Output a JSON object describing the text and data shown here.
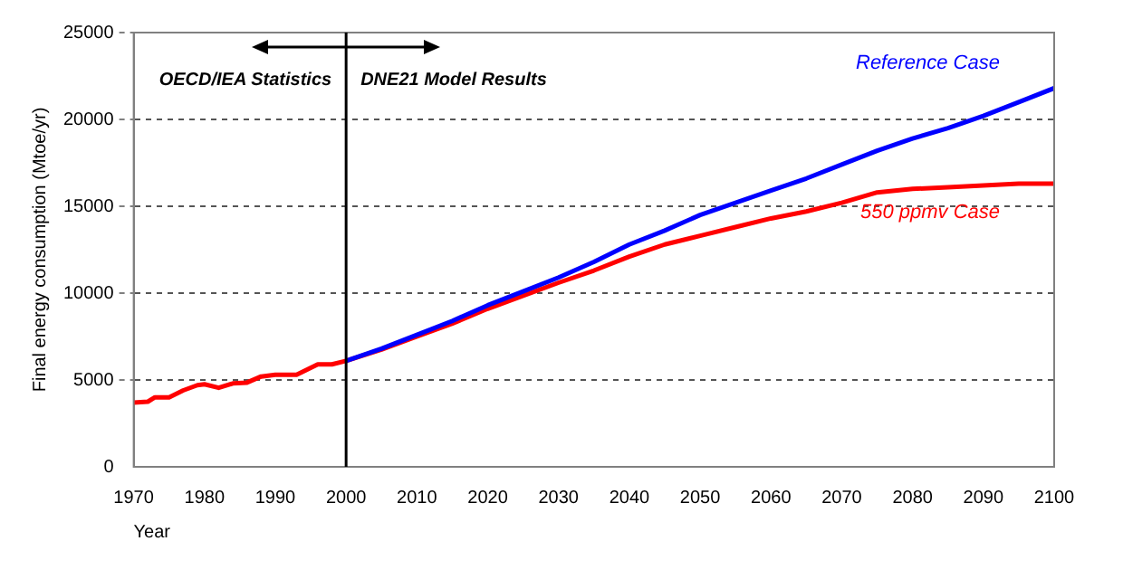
{
  "chart_data": {
    "type": "line",
    "xlabel": "Year",
    "ylabel": "Final energy consumption (Mtoe/yr)",
    "series": [
      {
        "name": "Reference Case",
        "color": "#0000ff",
        "x": [
          2000,
          2005,
          2010,
          2015,
          2020,
          2025,
          2030,
          2035,
          2040,
          2045,
          2050,
          2055,
          2060,
          2065,
          2070,
          2075,
          2080,
          2085,
          2090,
          2095,
          2100
        ],
        "values": [
          6100,
          6800,
          7600,
          8400,
          9300,
          10100,
          10900,
          11800,
          12800,
          13600,
          14500,
          15200,
          15900,
          16600,
          17400,
          18200,
          18900,
          19500,
          20200,
          21000,
          21800
        ]
      },
      {
        "name": "550 ppmv Case",
        "color": "#ff0000",
        "x": [
          1970,
          1972,
          1973,
          1975,
          1977,
          1979,
          1980,
          1982,
          1984,
          1986,
          1988,
          1990,
          1993,
          1996,
          1998,
          2000,
          2005,
          2010,
          2015,
          2020,
          2025,
          2030,
          2035,
          2040,
          2045,
          2050,
          2055,
          2060,
          2065,
          2070,
          2075,
          2080,
          2085,
          2090,
          2095,
          2100
        ],
        "values": [
          3700,
          3750,
          4000,
          4000,
          4400,
          4700,
          4750,
          4550,
          4800,
          4850,
          5200,
          5300,
          5300,
          5900,
          5900,
          6100,
          6750,
          7500,
          8250,
          9100,
          9850,
          10600,
          11300,
          12100,
          12800,
          13300,
          13800,
          14300,
          14700,
          15200,
          15800,
          16000,
          16100,
          16200,
          16300,
          16300
        ]
      }
    ],
    "xlim": [
      1970,
      2100
    ],
    "xticks": [
      1970,
      1980,
      1990,
      2000,
      2010,
      2020,
      2030,
      2040,
      2050,
      2060,
      2070,
      2080,
      2090,
      2100
    ],
    "ylim": [
      0,
      25000
    ],
    "yticks": [
      0,
      5000,
      10000,
      15000,
      20000,
      25000
    ],
    "grid": "y",
    "legend": false,
    "marker": "none",
    "line_style": "solid",
    "ref_lines": [
      {
        "axis": "x",
        "value": 2000,
        "color": "#000000"
      }
    ],
    "annotations": [
      "OECD/IEA Statistics",
      "DNE21 Model Results"
    ]
  }
}
